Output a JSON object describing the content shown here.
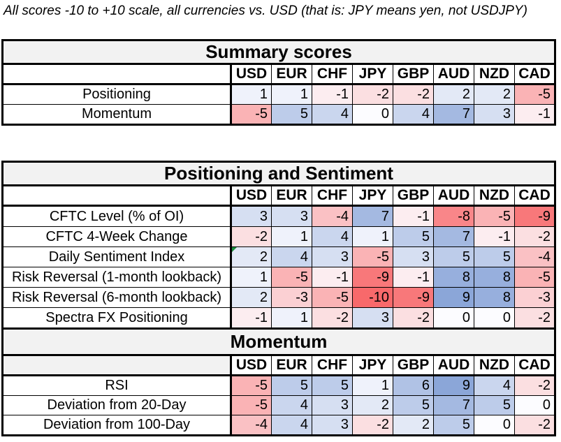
{
  "note": "All scores -10 to +10 scale, all currencies vs. USD (that is: JPY means yen, not USDJPY)",
  "currencies": [
    "USD",
    "EUR",
    "CHF",
    "JPY",
    "GBP",
    "AUD",
    "NZD",
    "CAD"
  ],
  "colors": {
    "negative_max": "#F8696B",
    "neutral": "#FCFCFF",
    "positive_max": "#7E9CD4",
    "band_background": "#F2F2F2",
    "border": "#000000",
    "error_marker_green": "#1E8E3E"
  },
  "scale": {
    "min": -10,
    "max": 10
  },
  "chart_data": [
    {
      "type": "heatmap",
      "title": "Summary scores",
      "columns": [
        "USD",
        "EUR",
        "CHF",
        "JPY",
        "GBP",
        "AUD",
        "NZD",
        "CAD"
      ],
      "header_label_cell_bg": "#FFFFFF",
      "rows": [
        {
          "label": "Positioning",
          "values": [
            1,
            1,
            -1,
            -2,
            -2,
            2,
            2,
            -5
          ]
        },
        {
          "label": "Momentum",
          "values": [
            -5,
            5,
            4,
            0,
            4,
            7,
            3,
            -1
          ]
        }
      ],
      "color_scale": {
        "domain": [
          -10,
          0,
          10
        ],
        "colors": [
          "#F8696B",
          "#FCFCFF",
          "#7E9CD4"
        ]
      }
    },
    {
      "type": "heatmap",
      "title": "Positioning and Sentiment",
      "columns": [
        "USD",
        "EUR",
        "CHF",
        "JPY",
        "GBP",
        "AUD",
        "NZD",
        "CAD"
      ],
      "header_label_cell_bg": "#FFFFFF",
      "rows": [
        {
          "label": "CFTC Level (% of OI)",
          "values": [
            3,
            3,
            -4,
            7,
            -1,
            -8,
            -5,
            -9
          ]
        },
        {
          "label": "CFTC 4-Week Change",
          "values": [
            -2,
            1,
            4,
            1,
            5,
            7,
            -1,
            -2
          ]
        },
        {
          "label": "Daily Sentiment Index",
          "values": [
            2,
            4,
            3,
            -5,
            3,
            5,
            5,
            -4
          ]
        },
        {
          "label": "Risk Reversal (1-month lookback)",
          "values": [
            1,
            -5,
            -1,
            -9,
            -1,
            8,
            8,
            -5
          ]
        },
        {
          "label": "Risk Reversal (6-month lookback)",
          "values": [
            2,
            -3,
            -5,
            -10,
            -9,
            9,
            8,
            -3
          ]
        },
        {
          "label": "Spectra FX Positioning",
          "values": [
            -1,
            1,
            -2,
            3,
            -2,
            0,
            0,
            -2
          ]
        }
      ],
      "cell_markers": [
        {
          "row": 2,
          "col": 0,
          "type": "green-triangle-error-indicator"
        }
      ],
      "color_scale": {
        "domain": [
          -10,
          0,
          10
        ],
        "colors": [
          "#F8696B",
          "#FCFCFF",
          "#7E9CD4"
        ]
      }
    },
    {
      "type": "heatmap",
      "title": "Momentum",
      "columns": [
        "USD",
        "EUR",
        "CHF",
        "JPY",
        "GBP",
        "AUD",
        "NZD",
        "CAD"
      ],
      "header_label_cell_bg": "#F2F2F2",
      "rows": [
        {
          "label": "RSI",
          "values": [
            -5,
            5,
            5,
            1,
            6,
            9,
            4,
            -2
          ]
        },
        {
          "label": "Deviation from 20-Day",
          "values": [
            -5,
            4,
            3,
            2,
            5,
            7,
            5,
            0
          ]
        },
        {
          "label": "Deviation from 100-Day",
          "values": [
            -4,
            4,
            3,
            -2,
            2,
            5,
            0,
            -2
          ]
        }
      ],
      "color_scale": {
        "domain": [
          -10,
          0,
          10
        ],
        "colors": [
          "#F8696B",
          "#FCFCFF",
          "#7E9CD4"
        ]
      }
    }
  ]
}
